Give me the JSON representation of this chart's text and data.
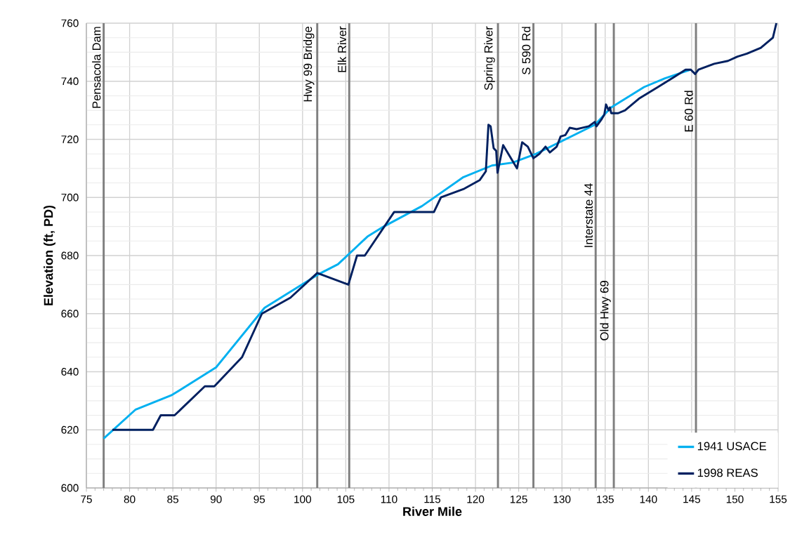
{
  "chart_data": {
    "type": "line",
    "xlabel": "River Mile",
    "ylabel": "Elevation (ft, PD)",
    "xlim": [
      75,
      155
    ],
    "ylim": [
      600,
      760
    ],
    "xticks": [
      75,
      80,
      85,
      90,
      95,
      100,
      105,
      110,
      115,
      120,
      125,
      130,
      135,
      140,
      145,
      150,
      155
    ],
    "yticks": [
      600,
      620,
      640,
      660,
      680,
      700,
      720,
      740,
      760
    ],
    "grid": true,
    "legend": "bottom right",
    "marker": "none",
    "line_style": "solid",
    "series": [
      {
        "name": "1941 USACE",
        "color": "#00b0f0",
        "x": [
          77.0,
          80.7,
          84.9,
          90.0,
          95.6,
          101.8,
          104.1,
          107.5,
          109.4,
          113.8,
          118.6,
          121.9,
          124.3,
          127.0,
          133.8,
          135.7,
          139.5,
          141.9,
          144.9
        ],
        "values": [
          617,
          627,
          632,
          641.5,
          662,
          673.5,
          677,
          686.5,
          690,
          697,
          707,
          711,
          712,
          715,
          725,
          731,
          738,
          741,
          744
        ]
      },
      {
        "name": "1998 REAS",
        "color": "#002060",
        "x": [
          78.0,
          82.7,
          83.6,
          85.2,
          88.7,
          89.8,
          93.0,
          95.3,
          98.6,
          101.7,
          105.3,
          106.3,
          107.2,
          110.6,
          115.2,
          116.0,
          118.7,
          120.5,
          121.2,
          121.5,
          121.75,
          122.1,
          122.4,
          122.55,
          123.2,
          124.8,
          125.4,
          126.05,
          126.7,
          127.4,
          128.1,
          128.6,
          129.4,
          129.85,
          130.4,
          130.9,
          131.7,
          132.4,
          133.1,
          133.8,
          134.0,
          134.6,
          134.9,
          135.1,
          135.4,
          135.55,
          135.7,
          136.5,
          137.3,
          138.9,
          141.1,
          143.0,
          144.3,
          144.9,
          145.4,
          145.8,
          147.6,
          149.2,
          150.3,
          151.4,
          153.0,
          154.4,
          154.8
        ],
        "values": [
          620,
          620,
          625,
          625,
          635,
          635,
          645,
          660,
          665.5,
          674,
          670,
          680,
          680,
          695,
          695,
          700,
          703,
          706,
          709,
          725,
          724.5,
          717,
          716,
          708.5,
          718,
          710,
          719,
          717.5,
          713.5,
          715,
          717.5,
          715.5,
          717.5,
          721,
          721.5,
          724,
          723.5,
          724,
          724.5,
          726,
          724.5,
          727,
          728.5,
          732,
          730,
          731,
          729,
          729,
          730,
          734,
          738,
          741.5,
          744,
          744,
          742.5,
          744,
          746,
          747,
          748.5,
          749.5,
          751.5,
          755,
          760
        ]
      }
    ],
    "ref_lines": [
      {
        "axis": "x",
        "value": 77.0,
        "label": "Pensacola Dam",
        "color": "#7f7f7f"
      },
      {
        "axis": "x",
        "value": 101.7,
        "label": "Hwy 99 Bridge",
        "color": "#7f7f7f"
      },
      {
        "axis": "x",
        "value": 105.4,
        "label": "Elk River",
        "color": "#7f7f7f"
      },
      {
        "axis": "x",
        "value": 122.6,
        "label": "Spring River",
        "color": "#7f7f7f"
      },
      {
        "axis": "x",
        "value": 126.7,
        "label": "S 590 Rd",
        "color": "#7f7f7f"
      },
      {
        "axis": "x",
        "value": 133.9,
        "label": "Interstate 44",
        "color": "#7f7f7f"
      },
      {
        "axis": "x",
        "value": 136.0,
        "label": "Old Hwy 69",
        "color": "#7f7f7f"
      },
      {
        "axis": "x",
        "value": 145.5,
        "label": "E 60 Rd",
        "color": "#7f7f7f"
      }
    ]
  }
}
